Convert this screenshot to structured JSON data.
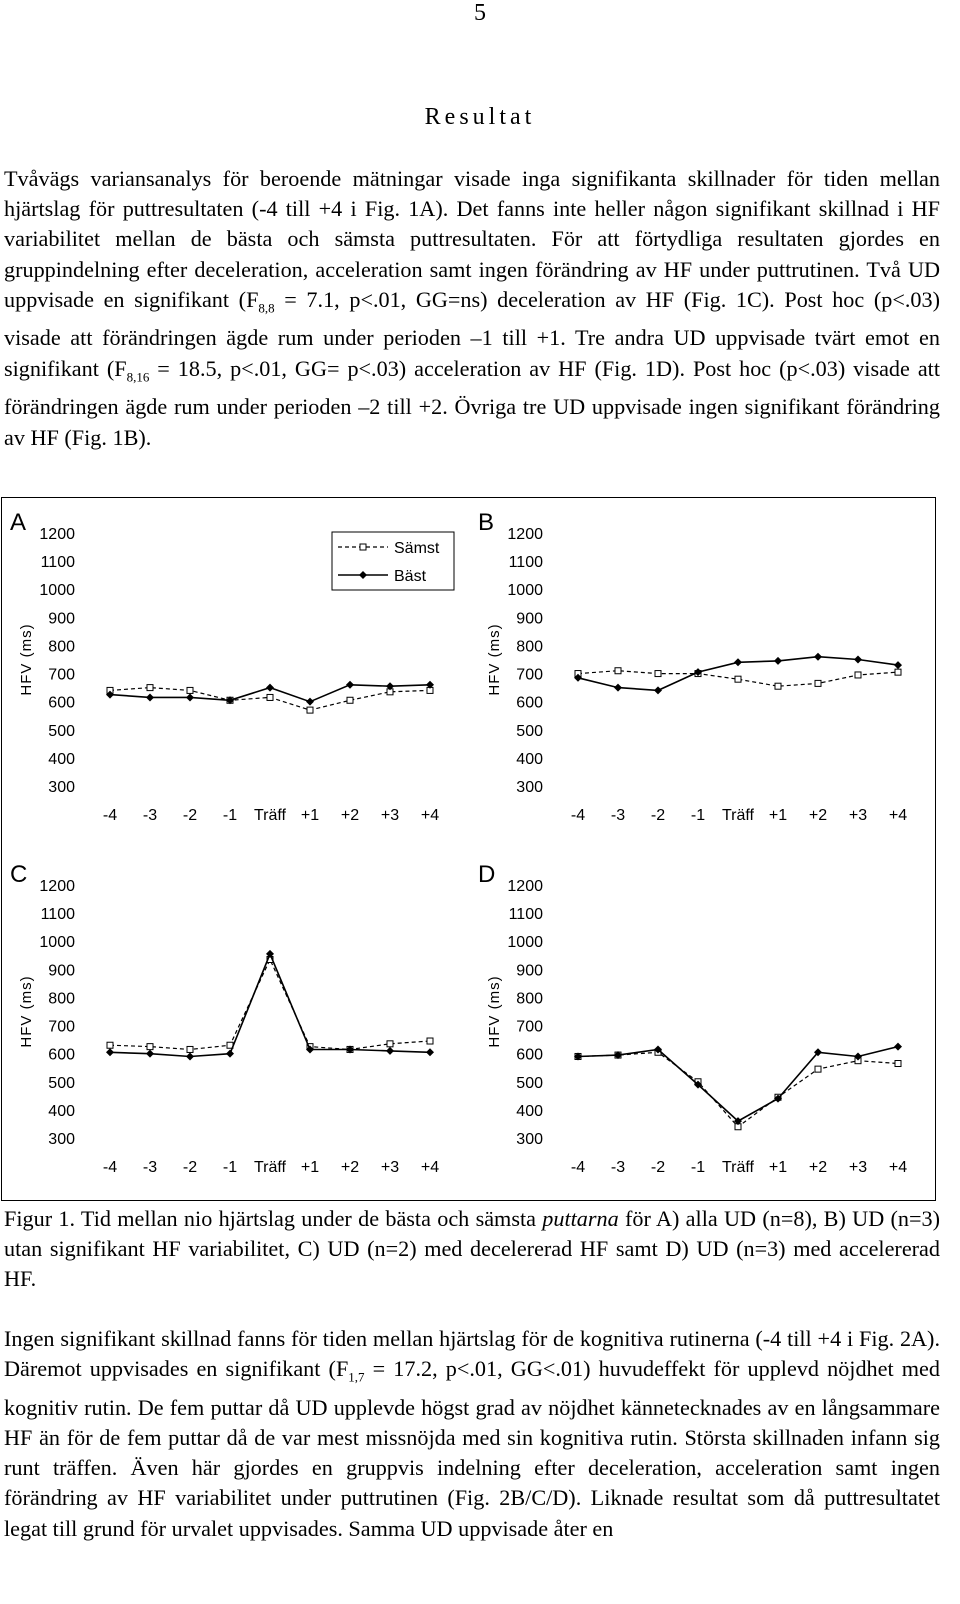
{
  "page_number": "5",
  "heading": "Resultat",
  "para1": {
    "s1": "Tvåvägs variansanalys för beroende mätningar visade inga signifikanta skillnader för tiden mellan hjärtslag för puttresultaten (-4 till +4 i Fig. 1A). Det fanns inte heller någon signifikant skillnad i HF variabilitet mellan de bästa och sämsta puttresultaten. För att förtydliga resultaten gjordes en gruppindelning efter deceleration, acceleration samt ingen förändring av HF under puttrutinen. Två UD uppvisade en signifikant (F",
    "sub1": "8,8",
    "s2": " = 7.1, p<.01, GG=ns) deceleration av HF (Fig. 1C). Post hoc (p<.03) visade att förändringen ägde rum under perioden –1 till +1. Tre andra UD uppvisade tvärt emot en signifikant (F",
    "sub2": "8,16",
    "s3": " = 18.5, p<.01, GG= p<.03) acceleration av HF (Fig. 1D). Post hoc (p<.03) visade att förändringen ägde rum under perioden –2 till +2. Övriga tre UD uppvisade ingen signifikant förändring av HF (Fig. 1B)."
  },
  "caption": {
    "a": "Figur 1. Tid mellan nio hjärtslag under de bästa och sämsta ",
    "em": "puttarna",
    "b": " för A) alla UD (n=8), B) UD (n=3) utan signifikant HF variabilitet, C) UD (n=2) med decelererad HF samt D) UD (n=3) med accelererad HF."
  },
  "para2": "Ingen signifikant skillnad fanns för tiden mellan hjärtslag för de kognitiva rutinerna (-4 till +4 i Fig. 2A). Däremot uppvisades en signifikant (F",
  "para2_sub": "1,7",
  "para2_b": " = 17.2, p<.01, GG<.01) huvudeffekt för upplevd nöjdhet med kognitiv rutin. De fem puttar då UD upplevde högst grad av nöjdhet kännetecknades av en långsammare HF än för de fem puttar då de var mest missnöjda med sin kognitiva rutin. Största skillnaden infann sig runt träffen. Även här gjordes en gruppvis indelning efter deceleration, acceleration samt ingen förändring av HF variabilitet under puttrutinen (Fig. 2B/C/D). Liknade resultat som då puttresultatet legat till grund för urvalet uppvisades. Samma UD uppvisade åter en",
  "chart_data": [
    {
      "type": "line",
      "panel": "A",
      "categories": [
        "-4",
        "-3",
        "-2",
        "-1",
        "Träff",
        "+1",
        "+2",
        "+3",
        "+4"
      ],
      "ylabel": "HFV (ms)",
      "yticks": [
        300,
        400,
        500,
        600,
        700,
        800,
        900,
        1000,
        1100,
        1200
      ],
      "ylim": [
        300,
        1200
      ],
      "legend": "top-right",
      "series": [
        {
          "name": "Sämst",
          "style": "dashed-open-square",
          "values": [
            640,
            650,
            640,
            605,
            615,
            570,
            605,
            635,
            640
          ]
        },
        {
          "name": "Bäst",
          "style": "solid-filled-diamond",
          "values": [
            625,
            615,
            615,
            605,
            650,
            600,
            660,
            655,
            660
          ]
        }
      ]
    },
    {
      "type": "line",
      "panel": "B",
      "categories": [
        "-4",
        "-3",
        "-2",
        "-1",
        "Träff",
        "+1",
        "+2",
        "+3",
        "+4"
      ],
      "ylabel": "HFV (ms)",
      "yticks": [
        300,
        400,
        500,
        600,
        700,
        800,
        900,
        1000,
        1100,
        1200
      ],
      "ylim": [
        300,
        1200
      ],
      "series": [
        {
          "name": "Sämst",
          "style": "dashed-open-square",
          "values": [
            700,
            710,
            700,
            700,
            680,
            655,
            665,
            695,
            705
          ]
        },
        {
          "name": "Bäst",
          "style": "solid-filled-diamond",
          "values": [
            685,
            650,
            640,
            705,
            740,
            745,
            760,
            750,
            730
          ]
        }
      ]
    },
    {
      "type": "line",
      "panel": "C",
      "categories": [
        "-4",
        "-3",
        "-2",
        "-1",
        "Träff",
        "+1",
        "+2",
        "+3",
        "+4"
      ],
      "ylabel": "HFV (ms)",
      "yticks": [
        300,
        400,
        500,
        600,
        700,
        800,
        900,
        1000,
        1100,
        1200
      ],
      "ylim": [
        300,
        1200
      ],
      "series": [
        {
          "name": "Sämst",
          "style": "dashed-open-square",
          "values": [
            630,
            625,
            615,
            630,
            935,
            625,
            615,
            635,
            645
          ]
        },
        {
          "name": "Bäst",
          "style": "solid-filled-diamond",
          "values": [
            605,
            600,
            590,
            600,
            955,
            615,
            615,
            610,
            605
          ]
        }
      ]
    },
    {
      "type": "line",
      "panel": "D",
      "categories": [
        "-4",
        "-3",
        "-2",
        "-1",
        "Träff",
        "+1",
        "+2",
        "+3",
        "+4"
      ],
      "ylabel": "HFV (ms)",
      "yticks": [
        300,
        400,
        500,
        600,
        700,
        800,
        900,
        1000,
        1100,
        1200
      ],
      "ylim": [
        300,
        1200
      ],
      "series": [
        {
          "name": "Sämst",
          "style": "dashed-open-square",
          "values": [
            590,
            595,
            605,
            500,
            340,
            445,
            545,
            575,
            565
          ]
        },
        {
          "name": "Bäst",
          "style": "solid-filled-diamond",
          "values": [
            590,
            595,
            615,
            490,
            360,
            440,
            605,
            590,
            625
          ]
        }
      ]
    }
  ]
}
